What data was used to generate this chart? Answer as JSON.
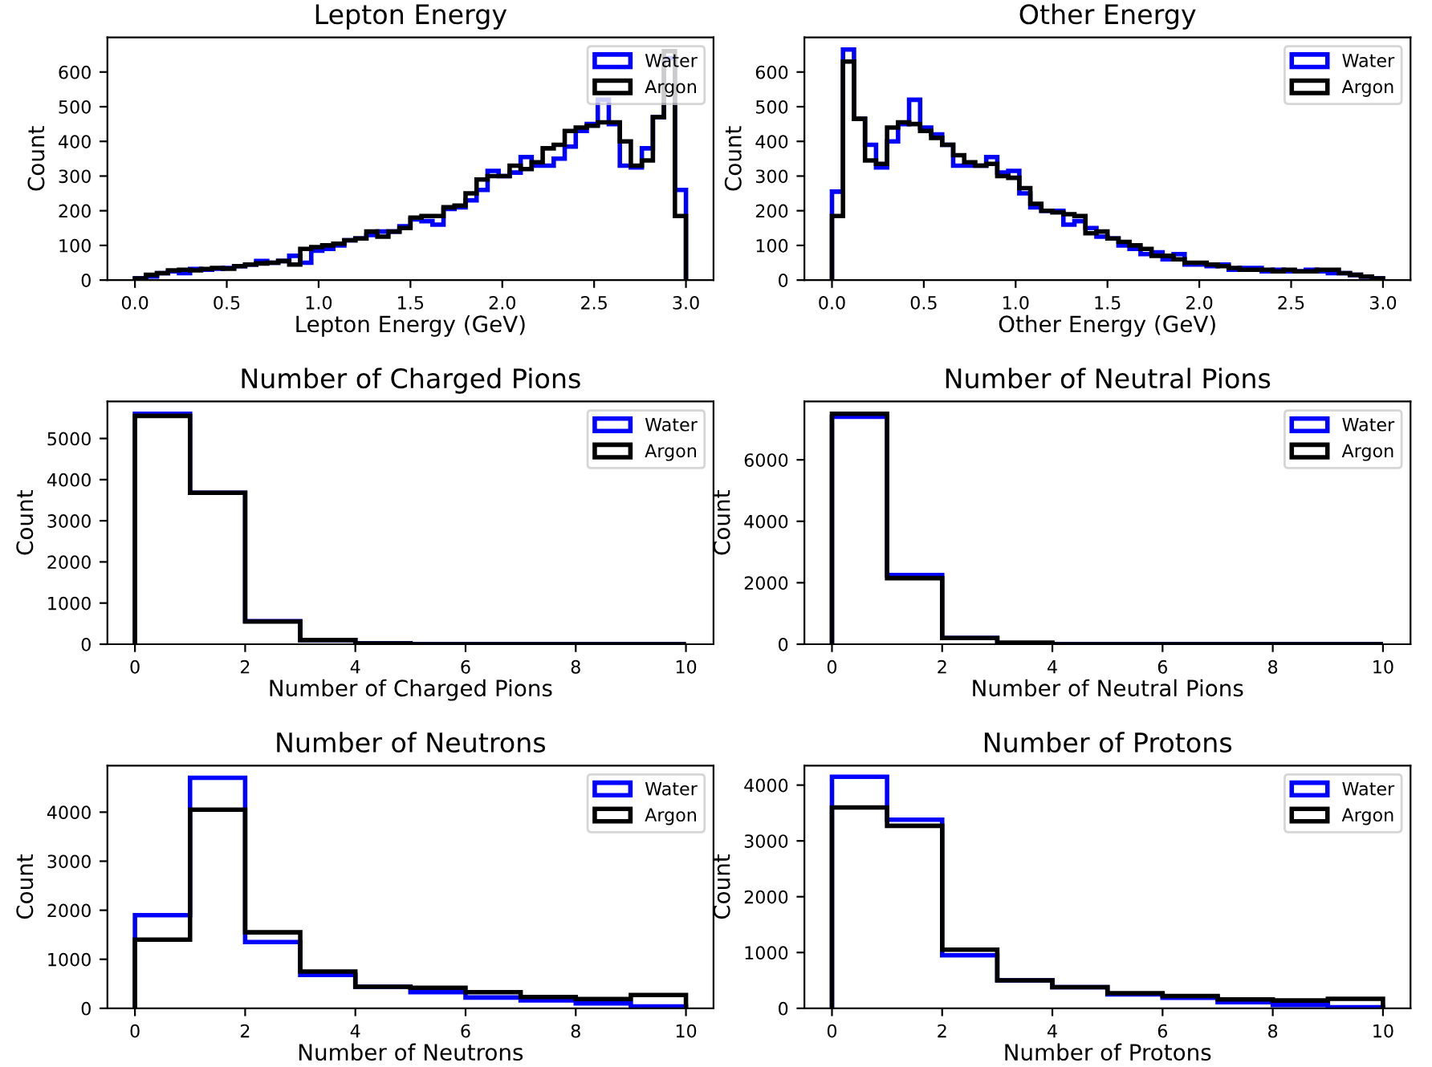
{
  "chart_data": [
    {
      "type": "histogram",
      "title": "Lepton Energy",
      "xlabel": "Lepton Energy (GeV)",
      "ylabel": "Count",
      "bins": [
        0.0,
        0.06,
        0.12,
        0.18,
        0.24,
        0.3,
        0.36,
        0.42,
        0.48,
        0.54,
        0.6,
        0.66,
        0.72,
        0.78,
        0.84,
        0.9,
        0.96,
        1.02,
        1.08,
        1.14,
        1.2,
        1.26,
        1.32,
        1.38,
        1.44,
        1.5,
        1.56,
        1.62,
        1.68,
        1.74,
        1.8,
        1.86,
        1.92,
        1.98,
        2.04,
        2.1,
        2.16,
        2.22,
        2.28,
        2.34,
        2.4,
        2.46,
        2.52,
        2.58,
        2.64,
        2.7,
        2.76,
        2.82,
        2.88,
        2.94,
        3.0
      ],
      "xlim": [
        -0.15,
        3.15
      ],
      "xticks": [
        {
          "value": 0,
          "label": "0.0"
        },
        {
          "value": 0.5,
          "label": "0.5"
        },
        {
          "value": 1,
          "label": "1.0"
        },
        {
          "value": 1.5,
          "label": "1.5"
        },
        {
          "value": 2,
          "label": "2.0"
        },
        {
          "value": 2.5,
          "label": "2.5"
        },
        {
          "value": 3,
          "label": "3.0"
        }
      ],
      "ylim": [
        0,
        700
      ],
      "yticks": [
        0,
        100,
        200,
        300,
        400,
        500,
        600
      ],
      "legend": "top right",
      "series": [
        {
          "name": "Water",
          "color": "#0000ff",
          "values": [
            5,
            10,
            20,
            25,
            20,
            32,
            30,
            33,
            35,
            40,
            45,
            55,
            50,
            55,
            70,
            50,
            85,
            90,
            100,
            115,
            120,
            130,
            140,
            140,
            155,
            175,
            170,
            160,
            205,
            210,
            230,
            260,
            315,
            300,
            310,
            355,
            330,
            330,
            350,
            385,
            430,
            450,
            520,
            450,
            330,
            325,
            380,
            470,
            640,
            260
          ]
        },
        {
          "name": "Argon",
          "color": "#000000",
          "values": [
            5,
            15,
            20,
            28,
            30,
            28,
            32,
            35,
            33,
            40,
            45,
            48,
            50,
            55,
            45,
            90,
            95,
            100,
            105,
            115,
            120,
            140,
            125,
            140,
            150,
            180,
            185,
            185,
            210,
            215,
            250,
            290,
            300,
            300,
            330,
            320,
            340,
            380,
            390,
            430,
            440,
            445,
            455,
            455,
            400,
            330,
            345,
            470,
            660,
            185
          ]
        }
      ]
    },
    {
      "type": "histogram",
      "title": "Other Energy",
      "xlabel": "Other Energy (GeV)",
      "ylabel": "Count",
      "bins": [
        0.0,
        0.06,
        0.12,
        0.18,
        0.24,
        0.3,
        0.36,
        0.42,
        0.48,
        0.54,
        0.6,
        0.66,
        0.72,
        0.78,
        0.84,
        0.9,
        0.96,
        1.02,
        1.08,
        1.14,
        1.2,
        1.26,
        1.32,
        1.38,
        1.44,
        1.5,
        1.56,
        1.62,
        1.68,
        1.74,
        1.8,
        1.86,
        1.92,
        1.98,
        2.04,
        2.1,
        2.16,
        2.22,
        2.28,
        2.34,
        2.4,
        2.46,
        2.52,
        2.58,
        2.64,
        2.7,
        2.76,
        2.82,
        2.88,
        2.94,
        3.0
      ],
      "xlim": [
        -0.15,
        3.15
      ],
      "xticks": [
        {
          "value": 0,
          "label": "0.0"
        },
        {
          "value": 0.5,
          "label": "0.5"
        },
        {
          "value": 1,
          "label": "1.0"
        },
        {
          "value": 1.5,
          "label": "1.5"
        },
        {
          "value": 2,
          "label": "2.0"
        },
        {
          "value": 2.5,
          "label": "2.5"
        },
        {
          "value": 3,
          "label": "3.0"
        }
      ],
      "ylim": [
        0,
        700
      ],
      "yticks": [
        0,
        100,
        200,
        300,
        400,
        500,
        600
      ],
      "legend": "top right",
      "series": [
        {
          "name": "Water",
          "color": "#0000ff",
          "values": [
            255,
            665,
            465,
            390,
            325,
            400,
            450,
            520,
            440,
            420,
            390,
            330,
            330,
            330,
            355,
            310,
            315,
            250,
            210,
            200,
            200,
            160,
            170,
            150,
            125,
            120,
            100,
            90,
            75,
            80,
            60,
            75,
            45,
            45,
            40,
            45,
            30,
            35,
            35,
            25,
            30,
            25,
            25,
            30,
            25,
            20,
            20,
            15,
            10,
            5
          ]
        },
        {
          "name": "Argon",
          "color": "#000000",
          "values": [
            185,
            630,
            465,
            345,
            335,
            440,
            455,
            450,
            430,
            410,
            390,
            360,
            340,
            330,
            335,
            300,
            295,
            265,
            220,
            200,
            195,
            190,
            185,
            135,
            140,
            120,
            110,
            100,
            90,
            70,
            70,
            60,
            50,
            50,
            45,
            40,
            35,
            30,
            30,
            30,
            25,
            30,
            25,
            25,
            30,
            30,
            20,
            15,
            10,
            5
          ]
        }
      ]
    },
    {
      "type": "histogram",
      "title": "Number of Charged Pions",
      "xlabel": "Number of Charged Pions",
      "ylabel": "Count",
      "bins": [
        0,
        1,
        2,
        3,
        4,
        5,
        6,
        7,
        8,
        9,
        10
      ],
      "xlim": [
        -0.5,
        10.5
      ],
      "xticks": [
        0,
        2,
        4,
        6,
        8,
        10
      ],
      "ylim": [
        0,
        5900
      ],
      "yticks": [
        0,
        1000,
        2000,
        3000,
        4000,
        5000
      ],
      "legend": "top right",
      "series": [
        {
          "name": "Water",
          "color": "#0000ff",
          "values": [
            5600,
            3680,
            560,
            100,
            20,
            0,
            0,
            0,
            0,
            0
          ]
        },
        {
          "name": "Argon",
          "color": "#000000",
          "values": [
            5550,
            3680,
            550,
            100,
            20,
            0,
            0,
            0,
            0,
            0
          ]
        }
      ]
    },
    {
      "type": "histogram",
      "title": "Number of Neutral Pions",
      "xlabel": "Number of Neutral Pions",
      "ylabel": "Count",
      "bins": [
        0,
        1,
        2,
        3,
        4,
        5,
        6,
        7,
        8,
        9,
        10
      ],
      "xlim": [
        -0.5,
        10.5
      ],
      "xticks": [
        0,
        2,
        4,
        6,
        8,
        10
      ],
      "ylim": [
        0,
        7900
      ],
      "yticks": [
        0,
        2000,
        4000,
        6000
      ],
      "legend": "top right",
      "series": [
        {
          "name": "Water",
          "color": "#0000ff",
          "values": [
            7400,
            2250,
            200,
            30,
            0,
            0,
            0,
            0,
            0,
            0
          ]
        },
        {
          "name": "Argon",
          "color": "#000000",
          "values": [
            7500,
            2150,
            200,
            50,
            0,
            0,
            0,
            0,
            0,
            0
          ]
        }
      ]
    },
    {
      "type": "histogram",
      "title": "Number of Neutrons",
      "xlabel": "Number of Neutrons",
      "ylabel": "Count",
      "bins": [
        0,
        1,
        2,
        3,
        4,
        5,
        6,
        7,
        8,
        9,
        10
      ],
      "xlim": [
        -0.5,
        10.5
      ],
      "xticks": [
        0,
        2,
        4,
        6,
        8,
        10
      ],
      "ylim": [
        0,
        4950
      ],
      "yticks": [
        0,
        1000,
        2000,
        3000,
        4000
      ],
      "legend": "top right",
      "series": [
        {
          "name": "Water",
          "color": "#0000ff",
          "values": [
            1900,
            4700,
            1350,
            680,
            440,
            330,
            220,
            160,
            100,
            40
          ]
        },
        {
          "name": "Argon",
          "color": "#000000",
          "values": [
            1400,
            4050,
            1550,
            750,
            440,
            420,
            330,
            230,
            190,
            270
          ]
        }
      ]
    },
    {
      "type": "histogram",
      "title": "Number of Protons",
      "xlabel": "Number of Protons",
      "ylabel": "Count",
      "bins": [
        0,
        1,
        2,
        3,
        4,
        5,
        6,
        7,
        8,
        9,
        10
      ],
      "xlim": [
        -0.5,
        10.5
      ],
      "xticks": [
        0,
        2,
        4,
        6,
        8,
        10
      ],
      "ylim": [
        0,
        4350
      ],
      "yticks": [
        0,
        1000,
        2000,
        3000,
        4000
      ],
      "legend": "top right",
      "series": [
        {
          "name": "Water",
          "color": "#0000ff",
          "values": [
            4150,
            3380,
            950,
            500,
            380,
            250,
            190,
            110,
            60,
            20
          ]
        },
        {
          "name": "Argon",
          "color": "#000000",
          "values": [
            3600,
            3270,
            1050,
            500,
            380,
            270,
            220,
            160,
            140,
            170
          ]
        }
      ]
    }
  ]
}
